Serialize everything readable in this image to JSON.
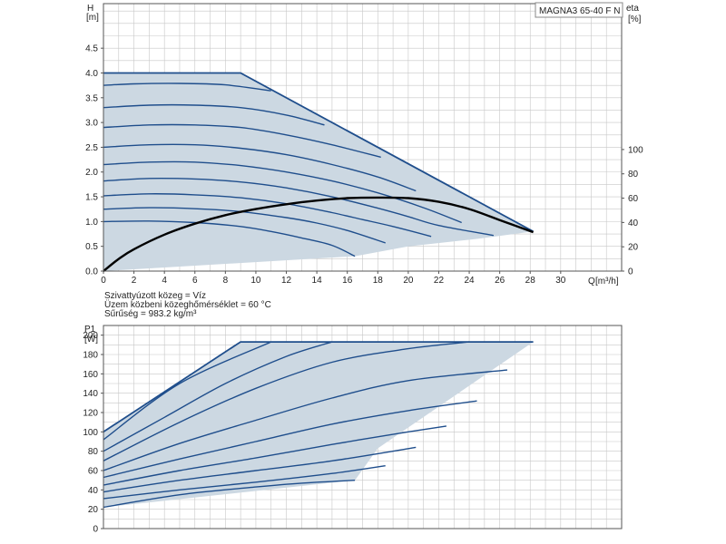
{
  "page": {
    "background": "#ffffff"
  },
  "colors": {
    "curve": "#1f4e8c",
    "fill": "#ccd8e2",
    "efficiency": "#000000",
    "grid": "#c7c7c7",
    "frame": "#555555"
  },
  "model_label": "MAGNA3 65-40 F N",
  "medium_notes": [
    "Szivattyúzott közeg = Víz",
    "Üzem közbeni közeghőmérséklet = 60 °C",
    "Sűrűség = 983.2 kg/m³"
  ],
  "chart_data": [
    {
      "type": "line",
      "ylabel": "H",
      "yunit": "[m]",
      "xlabel": "Q",
      "xunit": "[m³/h]",
      "y2label": "eta",
      "y2unit": "[%]",
      "xlim": [
        0,
        34
      ],
      "ylim": [
        0,
        5.4
      ],
      "y2lim": [
        0,
        220
      ],
      "xticks": [
        0,
        2,
        4,
        6,
        8,
        10,
        12,
        14,
        16,
        18,
        20,
        22,
        24,
        26,
        28,
        30
      ],
      "xtick_labels": [
        "0",
        "2",
        "4",
        "6",
        "8",
        "10",
        "12",
        "14",
        "16",
        "18",
        "20",
        "22",
        "24",
        "26",
        "28",
        "30"
      ],
      "yticks": [
        0,
        0.5,
        1.0,
        1.5,
        2.0,
        2.5,
        3.0,
        3.5,
        4.0,
        4.5
      ],
      "ytick_labels": [
        "0.0",
        "0.5",
        "1.0",
        "1.5",
        "2.0",
        "2.5",
        "3.0",
        "3.5",
        "4.0",
        "4.5"
      ],
      "y2ticks": [
        0,
        20,
        40,
        60,
        80,
        100
      ],
      "y2tick_labels": [
        "0",
        "20",
        "40",
        "60",
        "80",
        "100"
      ],
      "grid": true,
      "envelope": [
        [
          0,
          4.0
        ],
        [
          9,
          4.0
        ],
        [
          28.2,
          0.8
        ],
        [
          24.5,
          0.65
        ],
        [
          20,
          0.5
        ],
        [
          16.5,
          0.3
        ],
        [
          0,
          0
        ]
      ],
      "series": [
        {
          "values": [
            [
              0,
              3.75
            ],
            [
              2,
              3.78
            ],
            [
              5,
              3.79
            ],
            [
              8,
              3.76
            ],
            [
              11,
              3.64
            ]
          ]
        },
        {
          "values": [
            [
              0,
              3.3
            ],
            [
              3,
              3.35
            ],
            [
              6,
              3.35
            ],
            [
              9,
              3.3
            ],
            [
              12,
              3.15
            ],
            [
              14.5,
              2.95
            ]
          ]
        },
        {
          "values": [
            [
              0,
              2.9
            ],
            [
              3,
              2.95
            ],
            [
              6,
              2.95
            ],
            [
              9,
              2.9
            ],
            [
              12,
              2.75
            ],
            [
              15,
              2.55
            ],
            [
              18.2,
              2.3
            ]
          ]
        },
        {
          "values": [
            [
              0,
              2.5
            ],
            [
              3,
              2.55
            ],
            [
              6,
              2.55
            ],
            [
              9,
              2.48
            ],
            [
              12,
              2.35
            ],
            [
              15,
              2.15
            ],
            [
              18,
              1.9
            ],
            [
              20.5,
              1.62
            ]
          ]
        },
        {
          "values": [
            [
              0,
              2.15
            ],
            [
              3,
              2.2
            ],
            [
              6,
              2.2
            ],
            [
              9,
              2.13
            ],
            [
              12,
              2.0
            ],
            [
              15,
              1.82
            ],
            [
              18,
              1.58
            ],
            [
              21,
              1.28
            ],
            [
              23.5,
              0.98
            ]
          ]
        },
        {
          "values": [
            [
              0,
              1.82
            ],
            [
              3,
              1.87
            ],
            [
              6,
              1.86
            ],
            [
              9,
              1.8
            ],
            [
              12,
              1.68
            ],
            [
              15,
              1.5
            ],
            [
              18,
              1.27
            ],
            [
              20,
              1.1
            ],
            [
              22,
              0.92
            ],
            [
              25.6,
              0.72
            ]
          ]
        },
        {
          "values": [
            [
              0,
              1.52
            ],
            [
              3,
              1.56
            ],
            [
              6,
              1.54
            ],
            [
              9,
              1.48
            ],
            [
              12,
              1.36
            ],
            [
              15,
              1.18
            ],
            [
              17,
              1.04
            ],
            [
              19,
              0.9
            ],
            [
              21.5,
              0.7
            ]
          ]
        },
        {
          "values": [
            [
              0,
              1.25
            ],
            [
              3,
              1.28
            ],
            [
              6,
              1.26
            ],
            [
              9,
              1.2
            ],
            [
              12,
              1.08
            ],
            [
              14,
              0.97
            ],
            [
              16,
              0.82
            ],
            [
              18.5,
              0.57
            ]
          ]
        },
        {
          "values": [
            [
              0,
              1.0
            ],
            [
              3,
              1.01
            ],
            [
              6,
              0.98
            ],
            [
              9,
              0.9
            ],
            [
              11,
              0.8
            ],
            [
              13,
              0.67
            ],
            [
              15,
              0.52
            ],
            [
              16.5,
              0.3
            ]
          ]
        }
      ],
      "efficiency_curve": [
        [
          0,
          0
        ],
        [
          1,
          10
        ],
        [
          2,
          18
        ],
        [
          4,
          30
        ],
        [
          6,
          39
        ],
        [
          8,
          46
        ],
        [
          10,
          51
        ],
        [
          12,
          55
        ],
        [
          14,
          58
        ],
        [
          16,
          60
        ],
        [
          18,
          60.5
        ],
        [
          20,
          60
        ],
        [
          22,
          57
        ],
        [
          24,
          51
        ],
        [
          26,
          42
        ],
        [
          28.2,
          32
        ]
      ]
    },
    {
      "type": "line",
      "ylabel": "P1",
      "yunit": "[W]",
      "xlim": [
        0,
        34
      ],
      "ylim": [
        0,
        210
      ],
      "yticks": [
        0,
        20,
        40,
        60,
        80,
        100,
        120,
        140,
        160,
        180,
        200
      ],
      "ytick_labels": [
        "0",
        "20",
        "40",
        "60",
        "80",
        "100",
        "120",
        "140",
        "160",
        "180",
        "200"
      ],
      "grid": true,
      "envelope": [
        [
          0,
          100
        ],
        [
          9,
          193
        ],
        [
          28.2,
          193
        ],
        [
          18,
          83
        ],
        [
          16.5,
          50
        ],
        [
          0,
          22
        ]
      ],
      "series": [
        {
          "values": [
            [
              0,
              100
            ],
            [
              9,
              193
            ],
            [
              28.2,
              193
            ]
          ]
        },
        {
          "values": [
            [
              0,
              92
            ],
            [
              5,
              150
            ],
            [
              11,
              193
            ]
          ]
        },
        {
          "values": [
            [
              0,
              80
            ],
            [
              4,
              115
            ],
            [
              8,
              150
            ],
            [
              12,
              178
            ],
            [
              15,
              193
            ]
          ]
        },
        {
          "values": [
            [
              0,
              70
            ],
            [
              5,
              110
            ],
            [
              10,
              145
            ],
            [
              15,
              172
            ],
            [
              20,
              186
            ],
            [
              24,
              193
            ]
          ]
        },
        {
          "values": [
            [
              0,
              60
            ],
            [
              5,
              88
            ],
            [
              10,
              112
            ],
            [
              15,
              135
            ],
            [
              20,
              153
            ],
            [
              26.5,
              164
            ]
          ]
        },
        {
          "values": [
            [
              0,
              53
            ],
            [
              5,
              72
            ],
            [
              10,
              90
            ],
            [
              15,
              108
            ],
            [
              20,
              122
            ],
            [
              24.5,
              132
            ]
          ]
        },
        {
          "values": [
            [
              0,
              45
            ],
            [
              5,
              60
            ],
            [
              10,
              73
            ],
            [
              15,
              87
            ],
            [
              20,
              100
            ],
            [
              22.5,
              106
            ]
          ]
        },
        {
          "values": [
            [
              0,
              38
            ],
            [
              5,
              50
            ],
            [
              10,
              60
            ],
            [
              15,
              70
            ],
            [
              20.5,
              84
            ]
          ]
        },
        {
          "values": [
            [
              0,
              31
            ],
            [
              5,
              40
            ],
            [
              10,
              48
            ],
            [
              15,
              57
            ],
            [
              18.5,
              65
            ]
          ]
        },
        {
          "values": [
            [
              0,
              22
            ],
            [
              5,
              35
            ],
            [
              10,
              43
            ],
            [
              13,
              47
            ],
            [
              16.5,
              50
            ]
          ]
        }
      ]
    }
  ]
}
